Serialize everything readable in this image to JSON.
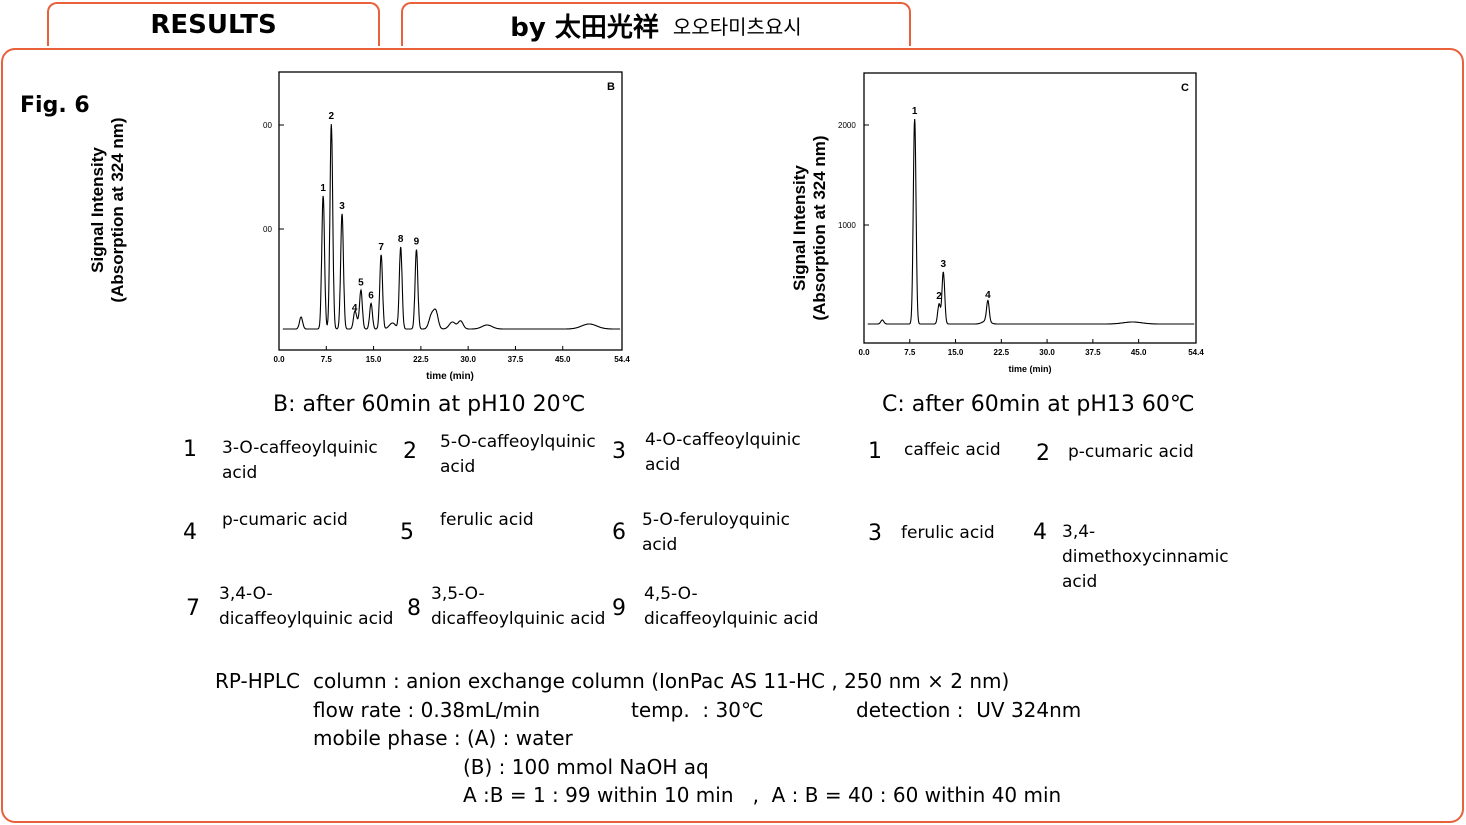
{
  "header": {
    "results_tab": "RESULTS",
    "author_tab": "by 太田光祥",
    "author_korean": "오오타미츠요시"
  },
  "figure_label": "Fig. 6",
  "chart_data": [
    {
      "type": "line",
      "panel_letter": "B",
      "ylabel_line1": "Signal Intensity",
      "ylabel_line2": "(Absorption at 324 nm)",
      "xlabel": "time (min)",
      "x_ticks": [
        "0.0",
        "7.5",
        "15.0",
        "22.5",
        "30.0",
        "37.5",
        "45.0",
        "54.4"
      ],
      "xlim": [
        0,
        54.4
      ],
      "y_ticks": [
        "00",
        "00"
      ],
      "peaks": [
        {
          "label": "1",
          "time": 7.0,
          "height": 0.52
        },
        {
          "label": "2",
          "time": 8.3,
          "height": 0.8
        },
        {
          "label": "3",
          "time": 10.0,
          "height": 0.45
        },
        {
          "label": "4",
          "time": 12.0,
          "height": 0.05
        },
        {
          "label": "5",
          "time": 13.0,
          "height": 0.15
        },
        {
          "label": "6",
          "time": 14.6,
          "height": 0.1
        },
        {
          "label": "7",
          "time": 16.2,
          "height": 0.29
        },
        {
          "label": "8",
          "time": 19.3,
          "height": 0.32
        },
        {
          "label": "9",
          "time": 21.8,
          "height": 0.31
        }
      ],
      "caption": "B: after 60min at pH10 20℃",
      "compounds": [
        {
          "num": "1",
          "name": "3-O-caffeoylquinic acid"
        },
        {
          "num": "2",
          "name": "5-O-caffeoylquinic acid"
        },
        {
          "num": "3",
          "name": "4-O-caffeoylquinic acid"
        },
        {
          "num": "4",
          "name": "p-cumaric acid"
        },
        {
          "num": "5",
          "name": "ferulic acid"
        },
        {
          "num": "6",
          "name": "5-O-feruloyquinic acid"
        },
        {
          "num": "7",
          "name": "3,4-O-dicaffeoylquinic acid"
        },
        {
          "num": "8",
          "name": "3,5-O-dicaffeoylquinic acid"
        },
        {
          "num": "9",
          "name": "4,5-O-dicaffeoylquinic acid"
        }
      ]
    },
    {
      "type": "line",
      "panel_letter": "C",
      "ylabel_line1": "Signal Intensity",
      "ylabel_line2": "(Absorption at 324 nm)",
      "xlabel": "time (min)",
      "x_ticks": [
        "0.0",
        "7.5",
        "15.0",
        "22.5",
        "30.0",
        "37.5",
        "45.0",
        "54.4"
      ],
      "xlim": [
        0,
        54.4
      ],
      "y_ticks": [
        "2000",
        "1000"
      ],
      "peaks": [
        {
          "label": "1",
          "time": 8.3,
          "height": 2050
        },
        {
          "label": "2",
          "time": 12.3,
          "height": 200
        },
        {
          "label": "3",
          "time": 13.0,
          "height": 520
        },
        {
          "label": "4",
          "time": 20.3,
          "height": 210
        }
      ],
      "caption": "C: after 60min at pH13 60℃",
      "compounds": [
        {
          "num": "1",
          "name": "caffeic acid"
        },
        {
          "num": "2",
          "name": "p-cumaric acid"
        },
        {
          "num": "3",
          "name": "ferulic acid"
        },
        {
          "num": "4",
          "name": "3,4-dimethoxycinnamic acid"
        }
      ]
    }
  ],
  "conditions": {
    "method": "RP-HPLC",
    "column": "column : anion exchange column (IonPac AS 11-HC , 250 nm × 2 nm)",
    "flow_rate": "flow rate : 0.38mL/min",
    "temp": "temp.  : 30℃",
    "detection": "detection :  UV 324nm",
    "mobile_phase": "mobile phase : (A) : water",
    "phase_b": "(B) : 100 mmol NaOH aq",
    "gradient": "A :B = 1 : 99 within 10 min   ,  A : B = 40 : 60 within 40 min"
  }
}
